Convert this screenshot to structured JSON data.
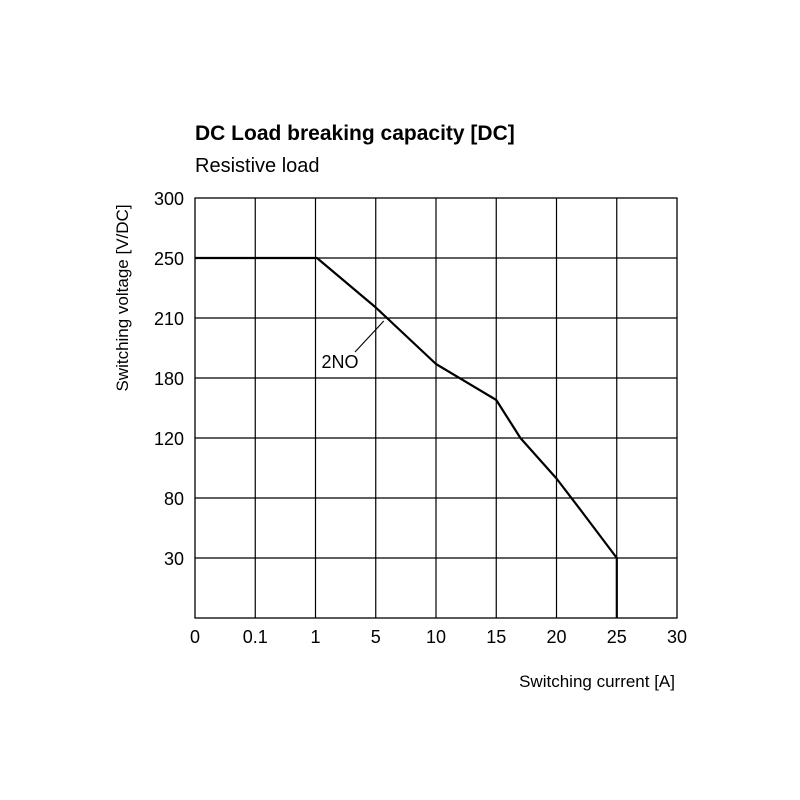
{
  "chart_data": {
    "type": "line",
    "title": "DC Load breaking capacity [DC]",
    "subtitle": "Resistive load",
    "xlabel": "Switching current [A]",
    "ylabel": "Switching voltage [V/DC]",
    "x_ticks": [
      "0",
      "0.1",
      "1",
      "5",
      "10",
      "15",
      "20",
      "25",
      "30"
    ],
    "y_ticks": [
      "30",
      "80",
      "120",
      "180",
      "210",
      "250",
      "300"
    ],
    "grid": true,
    "series": [
      {
        "name": "2NO",
        "x": [
          "0",
          "1.1",
          "5",
          "10",
          "15",
          "17",
          "20",
          "22",
          "25",
          "25"
        ],
        "y": [
          250,
          250,
          217,
          187,
          158,
          120,
          93,
          70,
          30,
          0
        ]
      }
    ],
    "annotations": [
      {
        "text": "2NO",
        "target_x": "5",
        "target_y": 210
      }
    ]
  }
}
